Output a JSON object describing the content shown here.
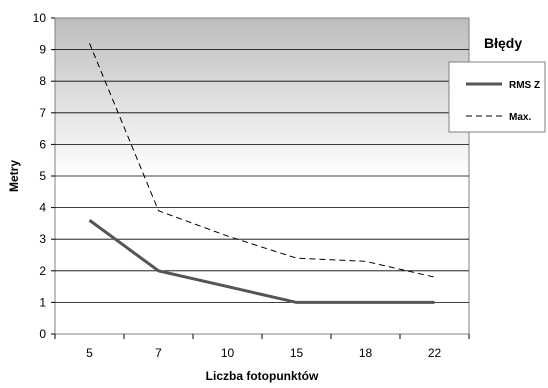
{
  "chart_data": {
    "type": "line",
    "categories": [
      "5",
      "7",
      "10",
      "15",
      "18",
      "22"
    ],
    "series": [
      {
        "name": "RMS Z",
        "values": [
          3.6,
          2.0,
          1.5,
          1.0,
          1.0,
          1.0
        ],
        "color": "#555555",
        "style": "solid"
      },
      {
        "name": "Max.",
        "values": [
          9.2,
          3.9,
          3.1,
          2.4,
          2.3,
          1.8
        ],
        "color": "#000000",
        "style": "dashed"
      }
    ],
    "xlabel": "Liczba fotopunktów",
    "ylabel": "Metry",
    "ylim": [
      0,
      10
    ],
    "yticks": [
      "0",
      "1",
      "2",
      "3",
      "4",
      "5",
      "6",
      "7",
      "8",
      "9",
      "10"
    ],
    "legend_title": "Błędy",
    "legend_position": "right",
    "grid": true,
    "plot_background": "gradient grey to white"
  }
}
